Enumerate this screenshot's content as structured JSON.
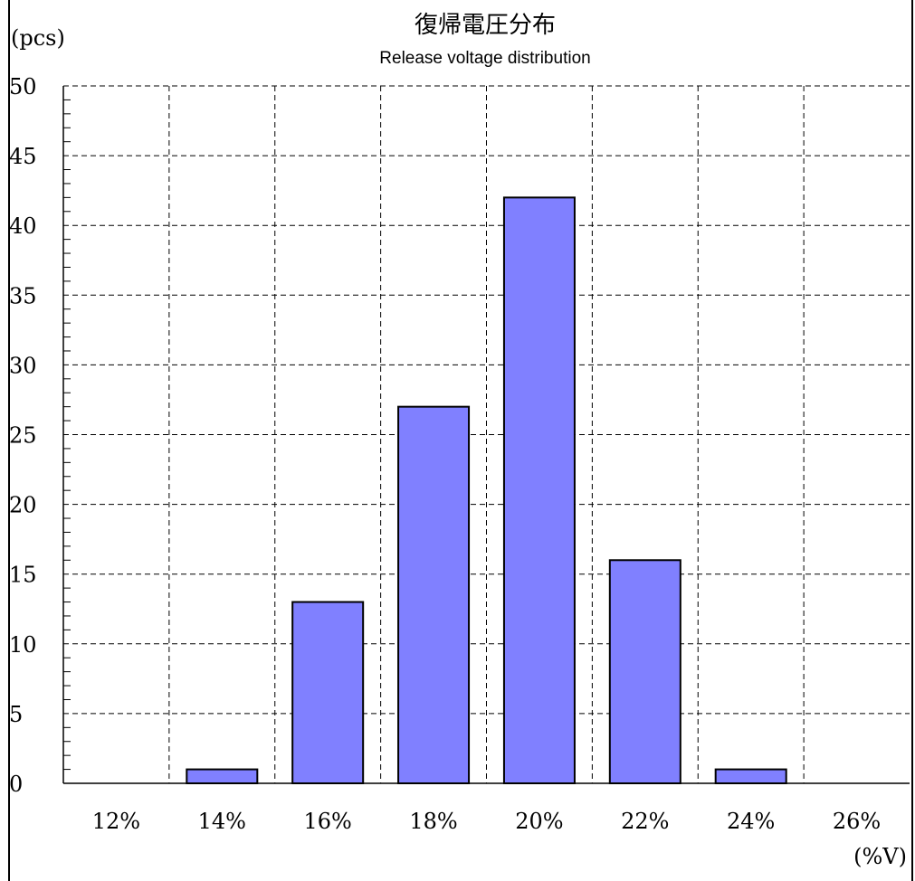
{
  "chart_data": {
    "type": "bar",
    "title": "復帰電圧分布",
    "subtitle": "Release voltage distribution",
    "ylabel": "(pcs)",
    "xlabel": "(%V)",
    "categories": [
      "12%",
      "14%",
      "16%",
      "18%",
      "20%",
      "22%",
      "24%",
      "26%"
    ],
    "values": [
      0,
      1,
      13,
      27,
      42,
      16,
      1,
      0
    ],
    "ylim": [
      0,
      50
    ],
    "yticks": [
      0,
      5,
      10,
      15,
      20,
      25,
      30,
      35,
      40,
      45,
      50
    ],
    "grid": true,
    "legend": "none",
    "colors": {
      "bar_fill": "#8080ff",
      "bar_stroke": "#000000",
      "grid": "#000000",
      "axis": "#000000"
    }
  }
}
